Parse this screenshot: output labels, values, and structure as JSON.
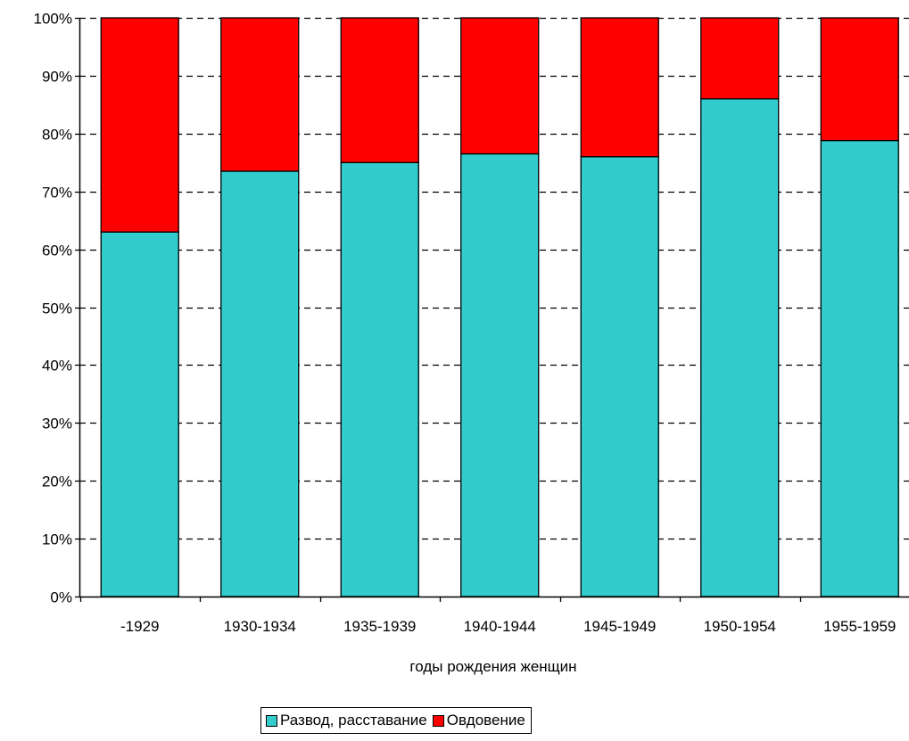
{
  "chart_data": {
    "type": "bar",
    "stacked": true,
    "percent": true,
    "categories": [
      "-1929",
      "1930-1934",
      "1935-1939",
      "1940-1944",
      "1945-1949",
      "1950-1954",
      "1955-1959"
    ],
    "series": [
      {
        "name": "Развод, расставание",
        "color": "#33CCCC",
        "values": [
          63,
          73.5,
          75,
          76.5,
          76,
          86,
          78.8
        ]
      },
      {
        "name": "Овдовение",
        "color": "#FF0000",
        "values": [
          37,
          26.5,
          25,
          23.5,
          24,
          14,
          21.2
        ]
      }
    ],
    "xlabel": "годы рождения женщин",
    "ylabel": "",
    "ylim": [
      0,
      100
    ],
    "yticks": [
      "0%",
      "10%",
      "20%",
      "30%",
      "40%",
      "50%",
      "60%",
      "70%",
      "80%",
      "90%",
      "100%"
    ],
    "grid": "dashed horizontal",
    "legend": "bottom-center"
  }
}
